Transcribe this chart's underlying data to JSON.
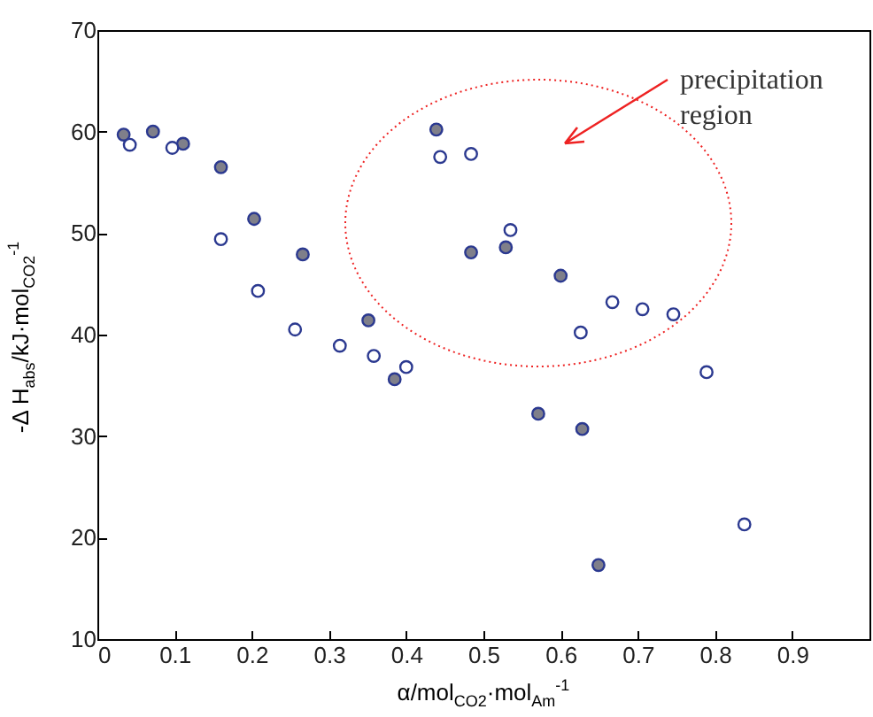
{
  "chart_data": {
    "type": "scatter",
    "xlabel": "α/mol$_{CO2}$·mol$_{Am}$$^{-1}$",
    "ylabel": "-Δ H$_{abs}$/kJ·mol$_{CO2}$$^{-1}$",
    "xlim": [
      0,
      1
    ],
    "xticks": [
      {
        "value": 0,
        "label": "0"
      },
      0.1,
      0.2,
      0.3,
      0.4,
      0.5,
      0.6,
      0.7,
      0.8,
      0.9
    ],
    "ylim": [
      10,
      70
    ],
    "yticks": [
      10,
      20,
      30,
      40,
      50,
      60,
      70
    ],
    "marker": "circle",
    "annotations": [
      "precipitation region"
    ],
    "series": [
      {
        "color": "#7f7f8a",
        "x": [
          0.034,
          0.072,
          0.111,
          0.16,
          0.203,
          0.266,
          0.351,
          0.385,
          0.439,
          0.484,
          0.529,
          0.6,
          0.571,
          0.628,
          0.649
        ],
        "values": [
          59.7,
          60.0,
          58.8,
          56.5,
          51.4,
          47.9,
          41.4,
          35.6,
          60.2,
          48.1,
          48.6,
          45.8,
          32.2,
          30.7,
          17.3
        ]
      },
      {
        "color": "#ffffff",
        "x": [
          0.042,
          0.097,
          0.16,
          0.208,
          0.256,
          0.314,
          0.358,
          0.4,
          0.444,
          0.484,
          0.535,
          0.626,
          0.667,
          0.706,
          0.746,
          0.789,
          0.838
        ],
        "values": [
          58.7,
          58.4,
          49.4,
          44.3,
          40.5,
          38.9,
          37.9,
          36.8,
          57.5,
          57.8,
          50.3,
          40.2,
          43.2,
          42.5,
          42.0,
          36.3,
          21.3
        ]
      }
    ]
  }
}
